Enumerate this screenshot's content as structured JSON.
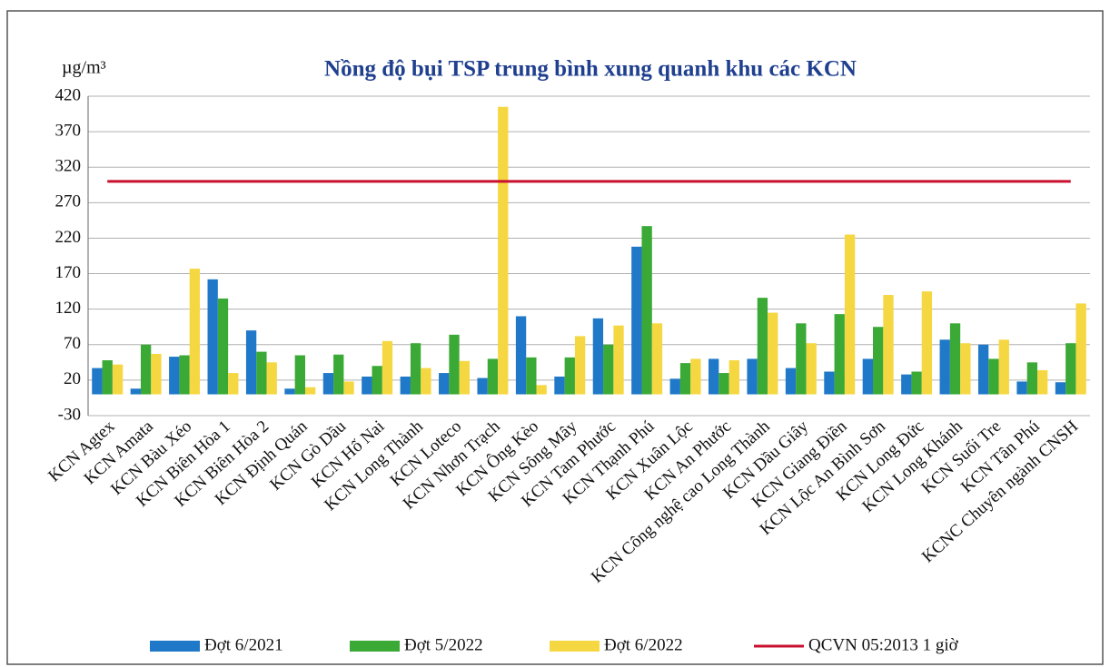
{
  "chart_data": {
    "type": "bar",
    "title": "Nồng độ bụi TSP trung bình xung quanh khu các KCN",
    "y_axis_label": "µg/m³",
    "categories": [
      "KCN Agtex",
      "KCN Amata",
      "KCN Bàu Xéo",
      "KCN Biên Hòa 1",
      "KCN Biên Hòa 2",
      "KCN Định Quán",
      "KCN Gò Dầu",
      "KCN Hố Nai",
      "KCN Long Thành",
      "KCN Loteco",
      "KCN Nhơn Trạch",
      "KCN Ông Kèo",
      "KCN Sông Mây",
      "KCN Tam Phước",
      "KCN Thạnh Phú",
      "KCN Xuân Lộc",
      "KCN An Phước",
      "KCN Công nghệ cao Long Thành",
      "KCN Dầu Giây",
      "KCN Giang Điền",
      "KCN Lộc An Bình Sơn",
      "KCN Long Đức",
      "KCN Long Khánh",
      "KCN Suối Tre",
      "KCN Tân Phú",
      "KCNC Chuyên ngành CNSH"
    ],
    "series": [
      {
        "name": "Đợt 6/2021",
        "color": "#1f78c8",
        "values": [
          37,
          8,
          53,
          162,
          90,
          8,
          30,
          25,
          25,
          30,
          23,
          110,
          25,
          107,
          208,
          22,
          50,
          50,
          37,
          32,
          50,
          28,
          77,
          70,
          18,
          17
        ]
      },
      {
        "name": "Đợt 5/2022",
        "color": "#3aa935",
        "values": [
          48,
          70,
          55,
          135,
          60,
          55,
          56,
          40,
          72,
          84,
          50,
          52,
          52,
          70,
          237,
          44,
          30,
          136,
          100,
          113,
          95,
          32,
          100,
          50,
          45,
          72
        ]
      },
      {
        "name": "Đợt 6/2022",
        "color": "#f5d742",
        "values": [
          42,
          57,
          177,
          30,
          45,
          10,
          18,
          75,
          37,
          47,
          405,
          13,
          82,
          97,
          100,
          50,
          48,
          115,
          72,
          225,
          140,
          145,
          72,
          77,
          34,
          128
        ]
      },
      {
        "name": "QCVN 05:2013 1 giờ",
        "type": "line",
        "color": "#c8102e",
        "values": [
          300,
          300,
          300,
          300,
          300,
          300,
          300,
          300,
          300,
          300,
          300,
          300,
          300,
          300,
          300,
          300,
          300,
          300,
          300,
          300,
          300,
          300,
          300,
          300,
          300,
          300
        ]
      }
    ],
    "ylim": [
      -30,
      420
    ],
    "yticks": [
      -30,
      20,
      70,
      120,
      170,
      220,
      270,
      320,
      370,
      420
    ],
    "grid": true
  }
}
